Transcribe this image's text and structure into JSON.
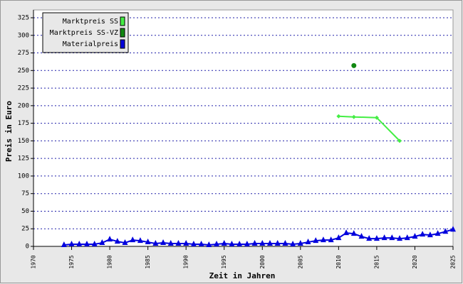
{
  "chart_data": {
    "type": "line",
    "xlabel": "Zeit in Jahren",
    "ylabel": "Preis in Euro",
    "xlim": [
      1970,
      2025
    ],
    "xticks": [
      1970,
      1975,
      1980,
      1985,
      1990,
      1995,
      2000,
      2005,
      2010,
      2015,
      2020,
      2025
    ],
    "ylim": [
      0,
      325
    ],
    "yticks": [
      0,
      25,
      50,
      75,
      100,
      125,
      150,
      175,
      200,
      225,
      250,
      275,
      300,
      325
    ],
    "grid": true,
    "legend": "upper left",
    "series": [
      {
        "name": "Marktpreis SS",
        "color": "#44ee44",
        "marker": "diamond",
        "x": [
          2010,
          2012,
          2015,
          2018
        ],
        "values": [
          185,
          184,
          183,
          150
        ]
      },
      {
        "name": "Marktpreis SS-VZ",
        "color": "#118811",
        "marker": "circle",
        "x": [
          2012
        ],
        "values": [
          257
        ]
      },
      {
        "name": "Materialpreis",
        "color": "#0000dd",
        "marker": "triangle",
        "x": [
          1974,
          1975,
          1976,
          1977,
          1978,
          1979,
          1980,
          1981,
          1982,
          1983,
          1984,
          1985,
          1986,
          1987,
          1988,
          1989,
          1990,
          1991,
          1992,
          1993,
          1994,
          1995,
          1996,
          1997,
          1998,
          1999,
          2000,
          2001,
          2002,
          2003,
          2004,
          2005,
          2006,
          2007,
          2008,
          2009,
          2010,
          2011,
          2012,
          2013,
          2014,
          2015,
          2016,
          2017,
          2018,
          2019,
          2020,
          2021,
          2022,
          2023,
          2024,
          2025
        ],
        "values": [
          2,
          3,
          3,
          3,
          3,
          5,
          10,
          7,
          5,
          9,
          8,
          6,
          4,
          5,
          4,
          4,
          4,
          3,
          3,
          2,
          3,
          4,
          3,
          3,
          3,
          4,
          4,
          4,
          4,
          4,
          3,
          4,
          6,
          8,
          9,
          9,
          12,
          19,
          18,
          14,
          11,
          11,
          12,
          12,
          11,
          12,
          14,
          17,
          16,
          18,
          21,
          24
        ]
      }
    ]
  }
}
